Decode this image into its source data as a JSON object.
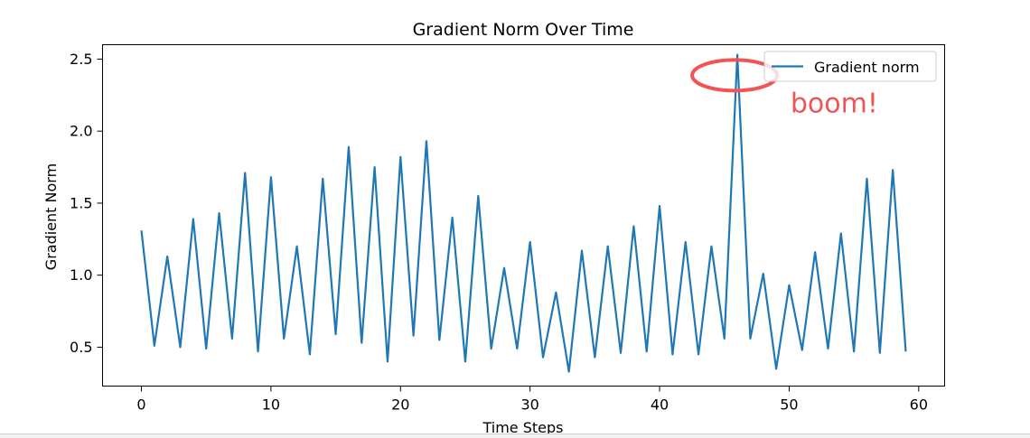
{
  "chart_data": {
    "type": "line",
    "title": "Gradient Norm Over Time",
    "xlabel": "Time Steps",
    "ylabel": "Gradient Norm",
    "xlim": [
      -3,
      62
    ],
    "ylim": [
      0.23,
      2.6
    ],
    "xticks": [
      0,
      10,
      20,
      30,
      40,
      50,
      60
    ],
    "xtick_labels": [
      "0",
      "10",
      "20",
      "30",
      "40",
      "50",
      "60"
    ],
    "yticks": [
      0.5,
      1.0,
      1.5,
      2.0,
      2.5
    ],
    "ytick_labels": [
      "0.5",
      "1.0",
      "1.5",
      "2.0",
      "2.5"
    ],
    "grid": false,
    "legend_position": "top-right",
    "series": [
      {
        "name": "Gradient norm",
        "color": "#1f77b4",
        "x": [
          0,
          1,
          2,
          3,
          4,
          5,
          6,
          7,
          8,
          9,
          10,
          11,
          12,
          13,
          14,
          15,
          16,
          17,
          18,
          19,
          20,
          21,
          22,
          23,
          24,
          25,
          26,
          27,
          28,
          29,
          30,
          31,
          32,
          33,
          34,
          35,
          36,
          37,
          38,
          39,
          40,
          41,
          42,
          43,
          44,
          45,
          46,
          47,
          48,
          49,
          50,
          51,
          52,
          53,
          54,
          55,
          56,
          57,
          58,
          59
        ],
        "values": [
          1.31,
          0.51,
          1.13,
          0.5,
          1.39,
          0.49,
          1.43,
          0.56,
          1.71,
          0.47,
          1.68,
          0.56,
          1.2,
          0.45,
          1.67,
          0.59,
          1.89,
          0.53,
          1.75,
          0.4,
          1.82,
          0.58,
          1.93,
          0.55,
          1.4,
          0.4,
          1.55,
          0.49,
          1.05,
          0.49,
          1.23,
          0.43,
          0.88,
          0.33,
          1.17,
          0.43,
          1.2,
          0.46,
          1.34,
          0.47,
          1.48,
          0.45,
          1.23,
          0.45,
          1.2,
          0.56,
          2.53,
          0.56,
          1.01,
          0.35,
          0.93,
          0.48,
          1.16,
          0.49,
          1.29,
          0.47,
          1.67,
          0.46,
          1.73,
          0.47
        ]
      }
    ],
    "annotations": [
      {
        "text": "boom!",
        "color": "#f05454",
        "target_x": 46,
        "target_y": 2.4,
        "marker": "ellipse",
        "label_x": 50.1,
        "label_y": 2.13
      }
    ]
  }
}
